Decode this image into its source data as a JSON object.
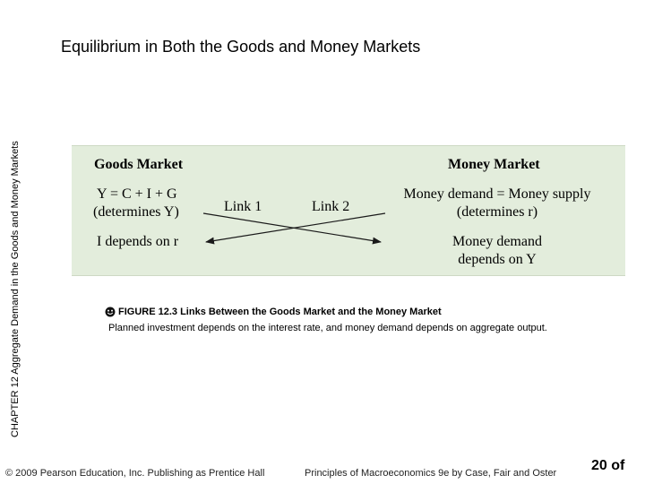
{
  "side_label": "CHAPTER 12  Aggregate Demand in the Goods and Money Markets",
  "title": "Equilibrium in Both the Goods and Money Markets",
  "figure": {
    "goods_market": {
      "heading": "Goods Market",
      "eq_line1": "Y = C + I + G",
      "eq_line2": "(determines Y)",
      "depends": "I depends on r"
    },
    "money_market": {
      "heading": "Money Market",
      "eq_line1": "Money demand = Money supply",
      "eq_line2": "(determines r)",
      "depends_line1": "Money demand",
      "depends_line2": "depends on Y"
    },
    "link1": "Link 1",
    "link2": "Link 2",
    "colors": {
      "panel_bg": "#e3eddc",
      "arrow": "#1a1a1a"
    }
  },
  "caption": {
    "bullet_icon": "smiley-bullet-icon",
    "title": "FIGURE 12.3  Links Between the Goods Market and the Money Market",
    "text": "Planned investment depends on the interest rate, and money demand depends on aggregate output."
  },
  "footer": {
    "copyright": "© 2009 Pearson Education, Inc. Publishing as Prentice Hall",
    "book": "Principles of Macroeconomics 9e by Case, Fair and Oster",
    "page": "20 of"
  }
}
